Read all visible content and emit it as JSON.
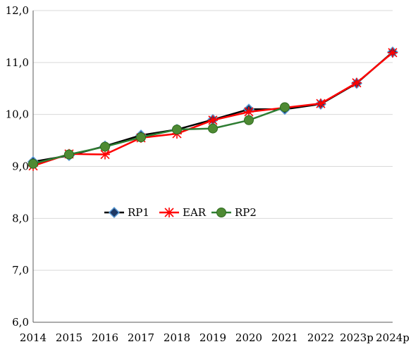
{
  "chart_data": {
    "type": "line",
    "categories": [
      "2014",
      "2015",
      "2016",
      "2017",
      "2018",
      "2019",
      "2020",
      "2021",
      "2022",
      "2023p",
      "2024p"
    ],
    "ylim": [
      6.0,
      12.0
    ],
    "yticks": [
      "6,0",
      "7,0",
      "8,0",
      "9,0",
      "10,0",
      "11,0",
      "12,0"
    ],
    "ytick_values": [
      6,
      7,
      8,
      9,
      10,
      11,
      12
    ],
    "grid": "horizontal",
    "legend_position": "center-left",
    "series": [
      {
        "name": "RP1",
        "color": "#000000",
        "marker": "diamond",
        "values": [
          9.09,
          9.21,
          9.39,
          9.6,
          9.71,
          9.9,
          10.1,
          10.1,
          10.2,
          10.6,
          11.2
        ]
      },
      {
        "name": "EAR",
        "color": "#ff0000",
        "marker": "asterisk",
        "values": [
          9.01,
          9.24,
          9.23,
          9.55,
          9.63,
          9.89,
          10.05,
          null,
          10.21,
          10.61,
          11.19
        ]
      },
      {
        "name": "RP2",
        "color": "#2e7d32",
        "marker": "circle",
        "values": [
          9.05,
          9.23,
          9.38,
          9.56,
          9.71,
          9.73,
          9.89,
          10.14,
          null,
          null,
          null
        ]
      }
    ]
  }
}
